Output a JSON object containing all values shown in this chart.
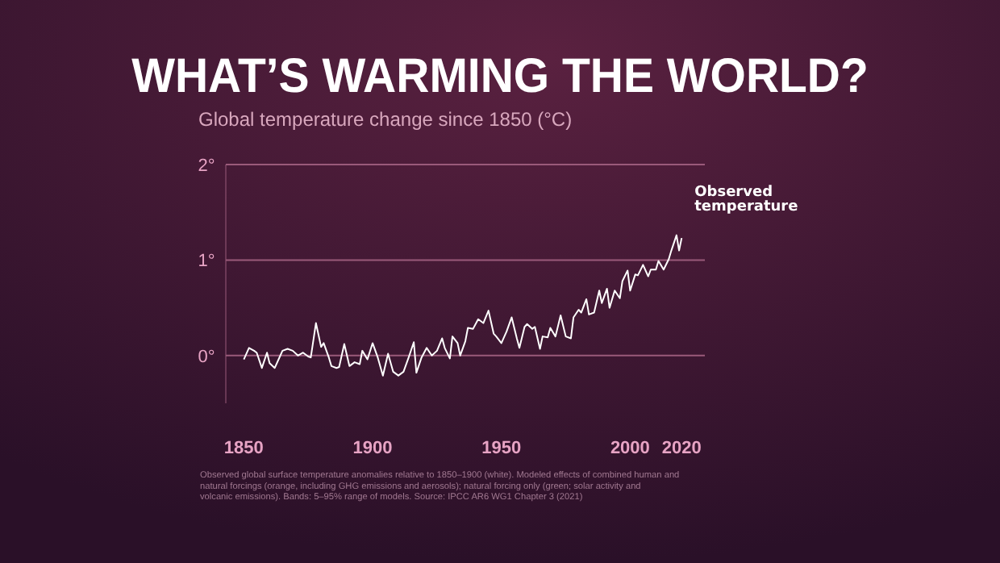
{
  "chart_data": {
    "type": "line",
    "title": "WHAT’S WARMING THE WORLD?",
    "subtitle": "Global temperature change since 1850 (°C)",
    "x": [
      1850,
      1852,
      1854,
      1855,
      1857,
      1859,
      1860,
      1862,
      1864,
      1865,
      1867,
      1869,
      1871,
      1873,
      1875,
      1876,
      1878,
      1880,
      1881,
      1883,
      1884,
      1886,
      1887,
      1889,
      1891,
      1893,
      1895,
      1896,
      1898,
      1900,
      1902,
      1904,
      1906,
      1908,
      1910,
      1912,
      1914,
      1916,
      1917,
      1919,
      1921,
      1923,
      1925,
      1927,
      1928,
      1930,
      1931,
      1933,
      1934,
      1936,
      1937,
      1939,
      1941,
      1943,
      1945,
      1947,
      1948,
      1950,
      1952,
      1954,
      1956,
      1957,
      1959,
      1960,
      1962,
      1963,
      1965,
      1966,
      1968,
      1969,
      1971,
      1973,
      1975,
      1977,
      1978,
      1980,
      1981,
      1983,
      1984,
      1986,
      1988,
      1989,
      1991,
      1992,
      1994,
      1996,
      1997,
      1999,
      2000,
      2002,
      2003,
      2005,
      2007,
      2008,
      2010,
      2011,
      2013,
      2015,
      2016,
      2018,
      2019,
      2020
    ],
    "series": [
      {
        "name": "Observed temperature",
        "color": "#ffffff",
        "values": [
          -0.04,
          0.08,
          0.05,
          0.03,
          -0.13,
          0.03,
          -0.08,
          -0.13,
          -0.01,
          0.05,
          0.07,
          0.05,
          0,
          0.03,
          -0.01,
          -0.02,
          0.34,
          0.09,
          0.13,
          -0.02,
          -0.11,
          -0.13,
          -0.12,
          0.12,
          -0.11,
          -0.07,
          -0.09,
          0.05,
          -0.04,
          0.13,
          -0.02,
          -0.21,
          0.02,
          -0.17,
          -0.21,
          -0.17,
          -0.02,
          0.14,
          -0.18,
          -0.02,
          0.08,
          0,
          0.05,
          0.18,
          0.08,
          -0.03,
          0.2,
          0.13,
          0,
          0.15,
          0.29,
          0.28,
          0.38,
          0.34,
          0.47,
          0.23,
          0.2,
          0.13,
          0.25,
          0.4,
          0.18,
          0.08,
          0.3,
          0.33,
          0.28,
          0.3,
          0.07,
          0.2,
          0.19,
          0.29,
          0.2,
          0.42,
          0.2,
          0.18,
          0.4,
          0.48,
          0.45,
          0.59,
          0.43,
          0.45,
          0.68,
          0.55,
          0.7,
          0.5,
          0.68,
          0.6,
          0.78,
          0.89,
          0.68,
          0.85,
          0.84,
          0.95,
          0.83,
          0.9,
          0.9,
          0.99,
          0.9,
          1.01,
          1.1,
          1.26,
          1.1,
          1.23
        ]
      }
    ],
    "xlim": [
      1843,
      2029
    ],
    "xticks": [
      1850,
      1900,
      1950,
      2000,
      2020
    ],
    "ylim": [
      -0.5,
      2
    ],
    "yticks": [
      {
        "value": 0,
        "label": "0°"
      },
      {
        "value": 1,
        "label": "1°"
      },
      {
        "value": 2,
        "label": "2°"
      }
    ],
    "grid": "y",
    "annotations": [
      "Observed global surface temperature anomalies relative to 1850–1900 (white). Modeled effects of combined human and natural forcings (orange, including GHG emissions and aerosols); natural forcing only (green; solar activity and volcanic emissions). Bands: 5–95% range of models. Source: IPCC AR6 WG1 Chapter 3 (2021)"
    ]
  }
}
